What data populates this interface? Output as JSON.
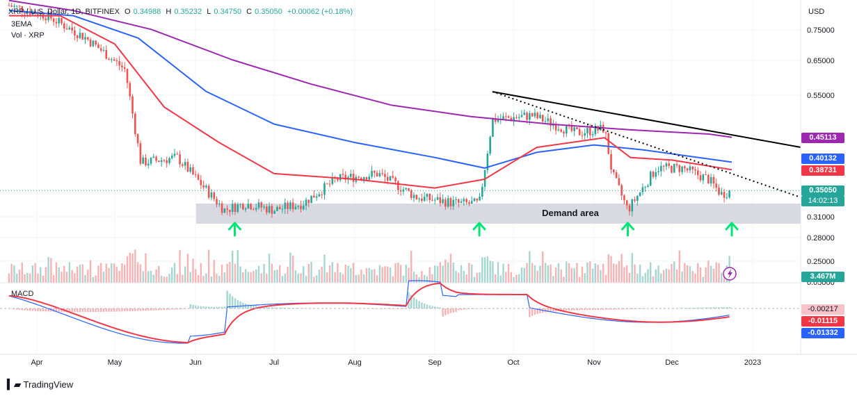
{
  "header": {
    "symbol": "XRP / U.S. Dollar, 1D, BITFINEX",
    "open_label": "O",
    "open": "0.34988",
    "high_label": "H",
    "high": "0.35232",
    "low_label": "L",
    "low": "0.34750",
    "close_label": "C",
    "close": "0.35050",
    "change": "+0.00062 (+0.18%)",
    "indicator": "3EMA",
    "volume": "Vol · XRP"
  },
  "price_axis": {
    "currency": "USD",
    "ticks": [
      "0.75000",
      "0.65000",
      "0.55000",
      "0.31000",
      "0.28000",
      "0.25000"
    ]
  },
  "price_tags": [
    {
      "key": "ema200",
      "value": "0.45113",
      "color": "#9c27b0"
    },
    {
      "key": "ema100",
      "value": "0.40132",
      "color": "#2962ff"
    },
    {
      "key": "ema50",
      "value": "0.38731",
      "color": "#f23645"
    },
    {
      "key": "last",
      "value": "0.35050",
      "color": "#26a69a"
    },
    {
      "key": "countdown",
      "value": "14:02:13",
      "color": "#26a69a"
    },
    {
      "key": "volume",
      "value": "3.467M",
      "color": "#26a69a"
    }
  ],
  "macd": {
    "label": "MACD",
    "axis_top": "0.05000",
    "tags": [
      {
        "value": "-0.00217",
        "color": "#f7c3c8",
        "text": "#131722"
      },
      {
        "value": "-0.01115",
        "color": "#f23645",
        "text": "#ffffff"
      },
      {
        "value": "-0.01332",
        "color": "#2962ff",
        "text": "#ffffff"
      }
    ]
  },
  "time_axis": [
    "Apr",
    "May",
    "Jun",
    "Jul",
    "Aug",
    "Sep",
    "Oct",
    "Nov",
    "Dec",
    "2023"
  ],
  "annotation": "Demand area",
  "footer": "TradingView",
  "chart_data": {
    "type": "candlestick",
    "price_scale": "log",
    "demand_zone": [
      0.3,
      0.335
    ],
    "support_arrows_dates": [
      "Jun 16",
      "Sep 18",
      "Nov 14",
      "Dec 24"
    ],
    "trendline_solid": [
      [
        "Sep 23",
        0.56
      ],
      [
        "Dec 31",
        0.42
      ]
    ],
    "trendline_dotted": [
      [
        "Sep 23",
        0.56
      ],
      [
        "Jan 5",
        0.34
      ]
    ],
    "ema_lines": [
      {
        "key": "ema200",
        "color": "#9c27b0",
        "points": [
          [
            "Mar 21",
            0.86
          ],
          [
            "Apr 15",
            0.82
          ],
          [
            "May 15",
            0.75
          ],
          [
            "Jun 15",
            0.65
          ],
          [
            "Jul 15",
            0.58
          ],
          [
            "Aug 15",
            0.525
          ],
          [
            "Sep 15",
            0.497
          ],
          [
            "Oct 15",
            0.48
          ],
          [
            "Nov 15",
            0.467
          ],
          [
            "Dec 15",
            0.458
          ],
          [
            "Dec 24",
            0.451
          ]
        ]
      },
      {
        "key": "ema100",
        "color": "#2962ff",
        "points": [
          [
            "Mar 21",
            0.82
          ],
          [
            "Apr 15",
            0.8
          ],
          [
            "May 10",
            0.72
          ],
          [
            "Jun 5",
            0.56
          ],
          [
            "Jul 1",
            0.48
          ],
          [
            "Aug 1",
            0.44
          ],
          [
            "Sep 1",
            0.41
          ],
          [
            "Sep 20",
            0.39
          ],
          [
            "Oct 10",
            0.42
          ],
          [
            "Nov 1",
            0.435
          ],
          [
            "Nov 20",
            0.425
          ],
          [
            "Dec 24",
            0.401
          ]
        ]
      },
      {
        "key": "ema50",
        "color": "#f23645",
        "points": [
          [
            "Mar 21",
            0.8
          ],
          [
            "Apr 10",
            0.8
          ],
          [
            "May 1",
            0.7
          ],
          [
            "May 20",
            0.52
          ],
          [
            "Jun 10",
            0.44
          ],
          [
            "Jul 1",
            0.38
          ],
          [
            "Aug 1",
            0.37
          ],
          [
            "Sep 1",
            0.355
          ],
          [
            "Sep 20",
            0.37
          ],
          [
            "Oct 10",
            0.43
          ],
          [
            "Nov 5",
            0.45
          ],
          [
            "Nov 15",
            0.41
          ],
          [
            "Dec 1",
            0.405
          ],
          [
            "Dec 24",
            0.387
          ]
        ]
      }
    ],
    "close_path": [
      [
        "Mar 21",
        0.84
      ],
      [
        "Apr 5",
        0.8
      ],
      [
        "Apr 20",
        0.72
      ],
      [
        "May 5",
        0.62
      ],
      [
        "May 11",
        0.4
      ],
      [
        "May 25",
        0.41
      ],
      [
        "Jun 12",
        0.32
      ],
      [
        "Jun 20",
        0.33
      ],
      [
        "Jul 1",
        0.32
      ],
      [
        "Jul 12",
        0.33
      ],
      [
        "Jul 25",
        0.37
      ],
      [
        "Aug 10",
        0.38
      ],
      [
        "Aug 25",
        0.34
      ],
      [
        "Sep 10",
        0.33
      ],
      [
        "Sep 18",
        0.33
      ],
      [
        "Sep 23",
        0.49
      ],
      [
        "Oct 8",
        0.5
      ],
      [
        "Oct 25",
        0.46
      ],
      [
        "Nov 5",
        0.47
      ],
      [
        "Nov 8",
        0.38
      ],
      [
        "Nov 14",
        0.32
      ],
      [
        "Nov 25",
        0.39
      ],
      [
        "Dec 5",
        0.39
      ],
      [
        "Dec 15",
        0.37
      ],
      [
        "Dec 20",
        0.345
      ],
      [
        "Dec 24",
        0.3505
      ]
    ],
    "last_price": 0.3505
  }
}
